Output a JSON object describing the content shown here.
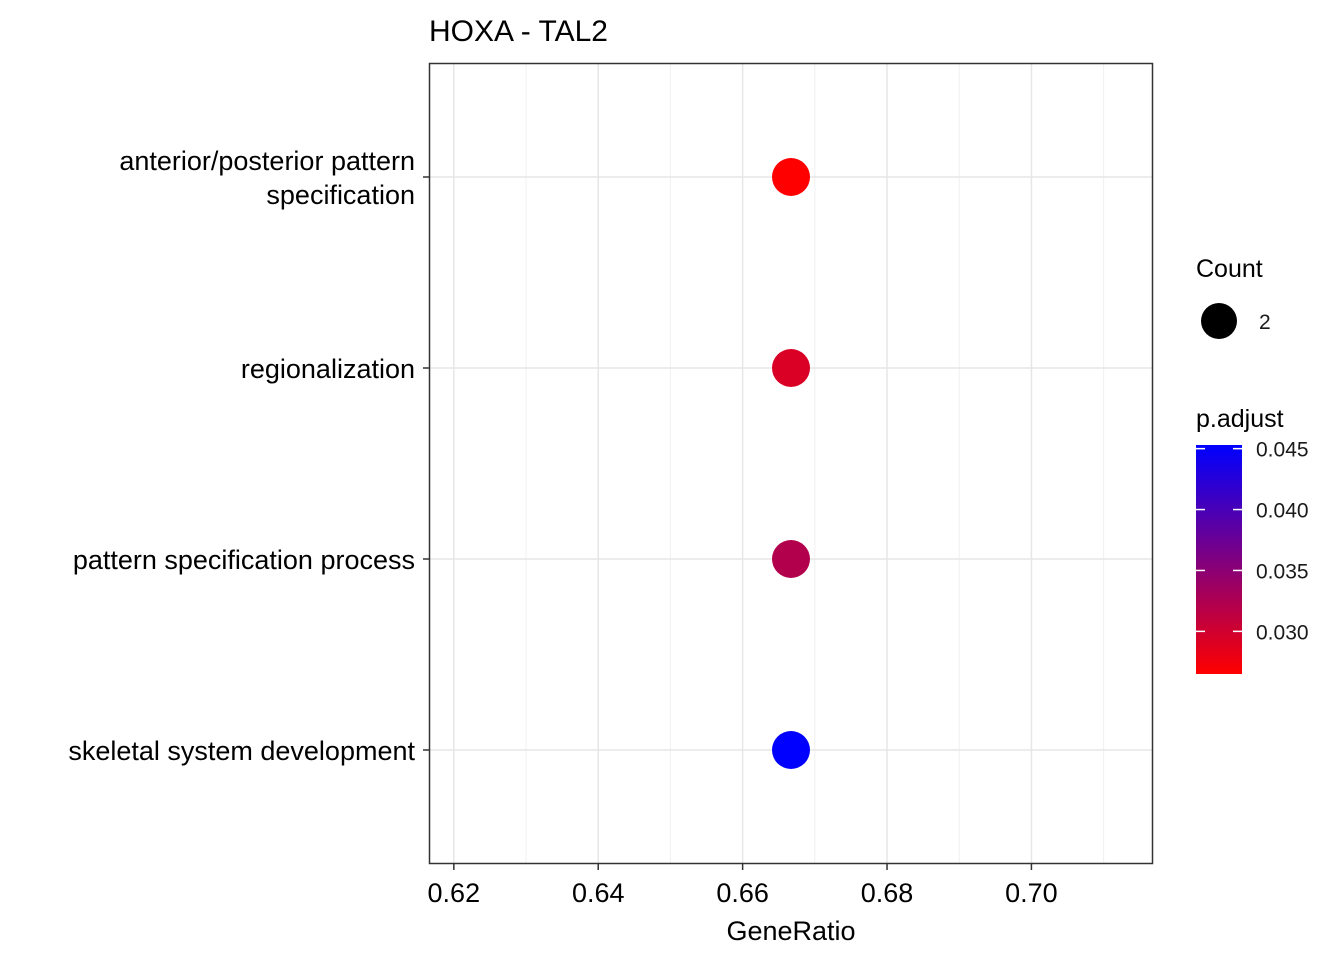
{
  "chart_data": {
    "type": "scatter",
    "title": "HOXA - TAL2",
    "xlabel": "GeneRatio",
    "ylabel": "",
    "xlim": [
      0.6167,
      0.7167
    ],
    "x_ticks": [
      0.62,
      0.64,
      0.66,
      0.68,
      0.7
    ],
    "x_tick_labels": [
      "0.62",
      "0.64",
      "0.66",
      "0.68",
      "0.70"
    ],
    "categories": [
      "anterior/posterior pattern specification",
      "regionalization",
      "pattern specification process",
      "skeletal system development"
    ],
    "category_label_lines": [
      [
        "anterior/posterior pattern",
        "specification"
      ],
      [
        "regionalization"
      ],
      [
        "pattern specification process"
      ],
      [
        "skeletal system development"
      ]
    ],
    "points": [
      {
        "category": "anterior/posterior pattern specification",
        "x": 0.6667,
        "count": 2,
        "p_adjust": 0.0265
      },
      {
        "category": "regionalization",
        "x": 0.6667,
        "count": 2,
        "p_adjust": 0.0292
      },
      {
        "category": "pattern specification process",
        "x": 0.6667,
        "count": 2,
        "p_adjust": 0.0322
      },
      {
        "category": "skeletal system development",
        "x": 0.6667,
        "count": 2,
        "p_adjust": 0.0453
      }
    ],
    "grid": true,
    "legend_position": "right",
    "size_legend": {
      "title": "Count",
      "values": [
        2
      ],
      "labels": [
        "2"
      ]
    },
    "color_legend": {
      "title": "p.adjust",
      "range": [
        0.0265,
        0.0453
      ],
      "low_color": "#ff0000",
      "high_color": "#0000ff",
      "ticks": [
        0.03,
        0.035,
        0.04,
        0.045
      ],
      "tick_labels": [
        "0.030",
        "0.035",
        "0.040",
        "0.045"
      ]
    }
  }
}
